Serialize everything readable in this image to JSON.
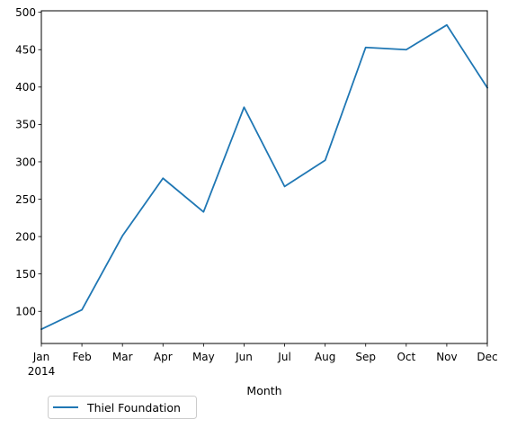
{
  "chart_data": {
    "type": "line",
    "title": "",
    "xlabel": "Month",
    "ylabel": "",
    "categories": [
      "Jan",
      "Feb",
      "Mar",
      "Apr",
      "May",
      "Jun",
      "Jul",
      "Aug",
      "Sep",
      "Oct",
      "Nov",
      "Dec"
    ],
    "year_label": "2014",
    "series": [
      {
        "name": "Thiel Foundation",
        "color": "#1f77b4",
        "values": [
          76,
          102,
          201,
          278,
          233,
          373,
          267,
          302,
          453,
          450,
          483,
          399
        ]
      }
    ],
    "ylim": [
      57,
      502
    ],
    "yticks": [
      100,
      150,
      200,
      250,
      300,
      350,
      400,
      450,
      500
    ],
    "grid": false,
    "legend_position": "below-left"
  }
}
